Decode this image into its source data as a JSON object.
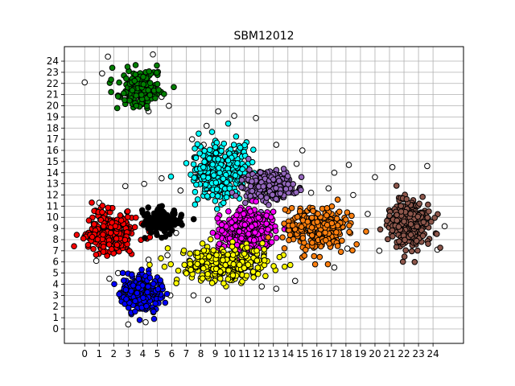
{
  "chart_data": {
    "type": "scatter",
    "title": "SBM12012",
    "xlabel": "",
    "ylabel": "",
    "xlim": [
      -1.4,
      26.1
    ],
    "ylim": [
      -1.3,
      25.3
    ],
    "grid": true,
    "xticks": [
      0,
      1,
      2,
      3,
      4,
      5,
      6,
      7,
      8,
      9,
      10,
      11,
      12,
      13,
      14,
      15,
      16,
      17,
      18,
      19,
      20,
      21,
      22,
      23,
      24
    ],
    "yticks": [
      0,
      1,
      2,
      3,
      4,
      5,
      6,
      7,
      8,
      9,
      10,
      11,
      12,
      13,
      14,
      15,
      16,
      17,
      18,
      19,
      20,
      21,
      22,
      23,
      24
    ],
    "clusters": [
      {
        "color": "#008000",
        "center": [
          3.8,
          21.6
        ],
        "spread": [
          1.0,
          1.2
        ],
        "count": 180
      },
      {
        "color": "#ff0000",
        "center": [
          1.8,
          8.8
        ],
        "spread": [
          1.2,
          1.3
        ],
        "count": 260
      },
      {
        "color": "#000000",
        "center": [
          5.2,
          9.8
        ],
        "spread": [
          1.0,
          0.8
        ],
        "count": 120
      },
      {
        "color": "#0000ff",
        "center": [
          3.9,
          3.3
        ],
        "spread": [
          1.0,
          1.2
        ],
        "count": 220
      },
      {
        "color": "#00ffff",
        "center": [
          9.3,
          14.2
        ],
        "spread": [
          1.3,
          1.8
        ],
        "count": 320
      },
      {
        "color": "#9467bd",
        "center": [
          12.8,
          12.8
        ],
        "spread": [
          1.2,
          1.0
        ],
        "count": 240
      },
      {
        "color": "#ff00ff",
        "center": [
          11.2,
          8.8
        ],
        "spread": [
          1.3,
          1.3
        ],
        "count": 320
      },
      {
        "color": "#ffff00",
        "center": [
          9.6,
          5.8
        ],
        "spread": [
          2.2,
          1.0
        ],
        "count": 320
      },
      {
        "color": "#ff7f0e",
        "center": [
          16.2,
          9.0
        ],
        "spread": [
          1.5,
          1.3
        ],
        "count": 280
      },
      {
        "color": "#8c564b",
        "center": [
          22.4,
          9.5
        ],
        "spread": [
          0.9,
          1.6
        ],
        "count": 240
      }
    ],
    "outliers": {
      "color": "#ffffff",
      "points": [
        [
          0.0,
          22.1
        ],
        [
          1.6,
          24.4
        ],
        [
          4.4,
          19.5
        ],
        [
          5.8,
          20.0
        ],
        [
          7.4,
          17.0
        ],
        [
          8.4,
          18.2
        ],
        [
          9.2,
          19.5
        ],
        [
          10.3,
          19.1
        ],
        [
          11.8,
          18.9
        ],
        [
          13.2,
          16.5
        ],
        [
          15.0,
          16.0
        ],
        [
          17.2,
          14.0
        ],
        [
          18.2,
          14.7
        ],
        [
          20.0,
          13.6
        ],
        [
          21.2,
          14.5
        ],
        [
          23.6,
          14.6
        ],
        [
          19.5,
          10.3
        ],
        [
          20.3,
          7.0
        ],
        [
          24.3,
          7.1
        ],
        [
          24.8,
          9.2
        ],
        [
          18.1,
          7.2
        ],
        [
          17.2,
          5.5
        ],
        [
          14.5,
          4.3
        ],
        [
          13.2,
          3.6
        ],
        [
          12.2,
          3.8
        ],
        [
          8.5,
          2.6
        ],
        [
          7.5,
          3.0
        ],
        [
          5.9,
          3.0
        ],
        [
          3.0,
          0.4
        ],
        [
          4.2,
          0.6
        ],
        [
          0.8,
          6.1
        ],
        [
          0.0,
          8.3
        ],
        [
          1.0,
          11.3
        ],
        [
          2.8,
          12.8
        ],
        [
          4.1,
          13.0
        ],
        [
          5.3,
          13.5
        ],
        [
          6.6,
          12.4
        ],
        [
          6.3,
          8.6
        ],
        [
          5.7,
          6.6
        ],
        [
          4.4,
          6.2
        ],
        [
          2.3,
          5.0
        ],
        [
          1.7,
          4.5
        ],
        [
          15.6,
          12.2
        ],
        [
          16.8,
          12.6
        ],
        [
          18.5,
          12.0
        ],
        [
          14.6,
          14.8
        ],
        [
          8.2,
          16.5
        ],
        [
          1.2,
          22.9
        ],
        [
          5.3,
          20.8
        ],
        [
          4.7,
          24.6
        ]
      ]
    }
  }
}
